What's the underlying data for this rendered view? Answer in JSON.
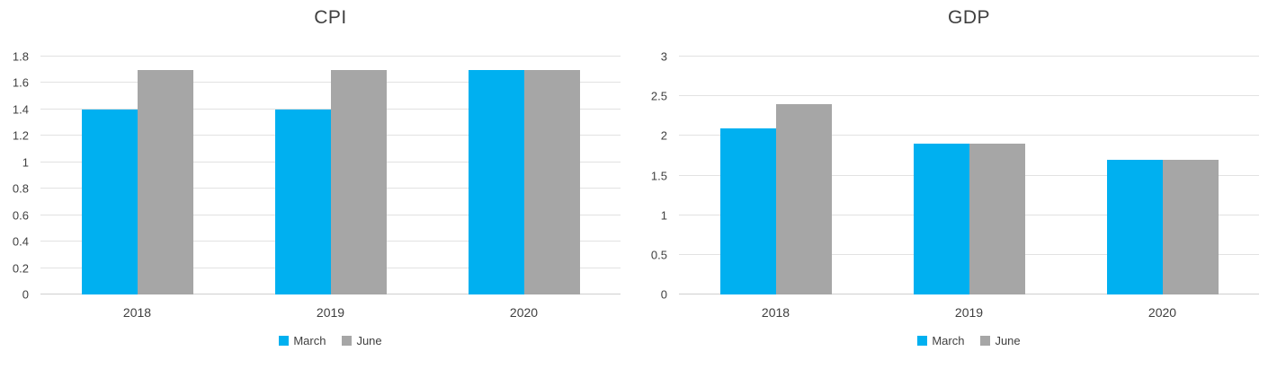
{
  "colors": {
    "march": "#00B0F0",
    "june": "#A6A6A6",
    "gridline": "#E2E2E2",
    "axis_line": "#CFCFCF",
    "text": "#3F3F3F",
    "background": "#FFFFFF"
  },
  "chart_data": [
    {
      "type": "bar",
      "title": "CPI",
      "categories": [
        "2018",
        "2019",
        "2020"
      ],
      "series": [
        {
          "name": "March",
          "color": "#00B0F0",
          "values": [
            1.4,
            1.4,
            1.7
          ]
        },
        {
          "name": "June",
          "color": "#A6A6A6",
          "values": [
            1.7,
            1.7,
            1.7
          ]
        }
      ],
      "xlabel": "",
      "ylabel": "",
      "ylim": [
        0,
        1.8
      ],
      "ytick_step": 0.2,
      "ytick_labels": [
        "1.8",
        "1.6",
        "1.4",
        "1.2",
        "1",
        "0.8",
        "0.6",
        "0.4",
        "0.2",
        "0"
      ],
      "grid": true,
      "legend_position": "bottom",
      "legend_labels": [
        "March",
        "June"
      ]
    },
    {
      "type": "bar",
      "title": "GDP",
      "categories": [
        "2018",
        "2019",
        "2020"
      ],
      "series": [
        {
          "name": "March",
          "color": "#00B0F0",
          "values": [
            2.1,
            1.9,
            1.7
          ]
        },
        {
          "name": "June",
          "color": "#A6A6A6",
          "values": [
            2.4,
            1.9,
            1.7
          ]
        }
      ],
      "xlabel": "",
      "ylabel": "",
      "ylim": [
        0,
        3
      ],
      "ytick_step": 0.5,
      "ytick_labels": [
        "3",
        "2.5",
        "2",
        "1.5",
        "1",
        "0.5",
        "0"
      ],
      "grid": true,
      "legend_position": "bottom",
      "legend_labels": [
        "March",
        "June"
      ]
    }
  ]
}
